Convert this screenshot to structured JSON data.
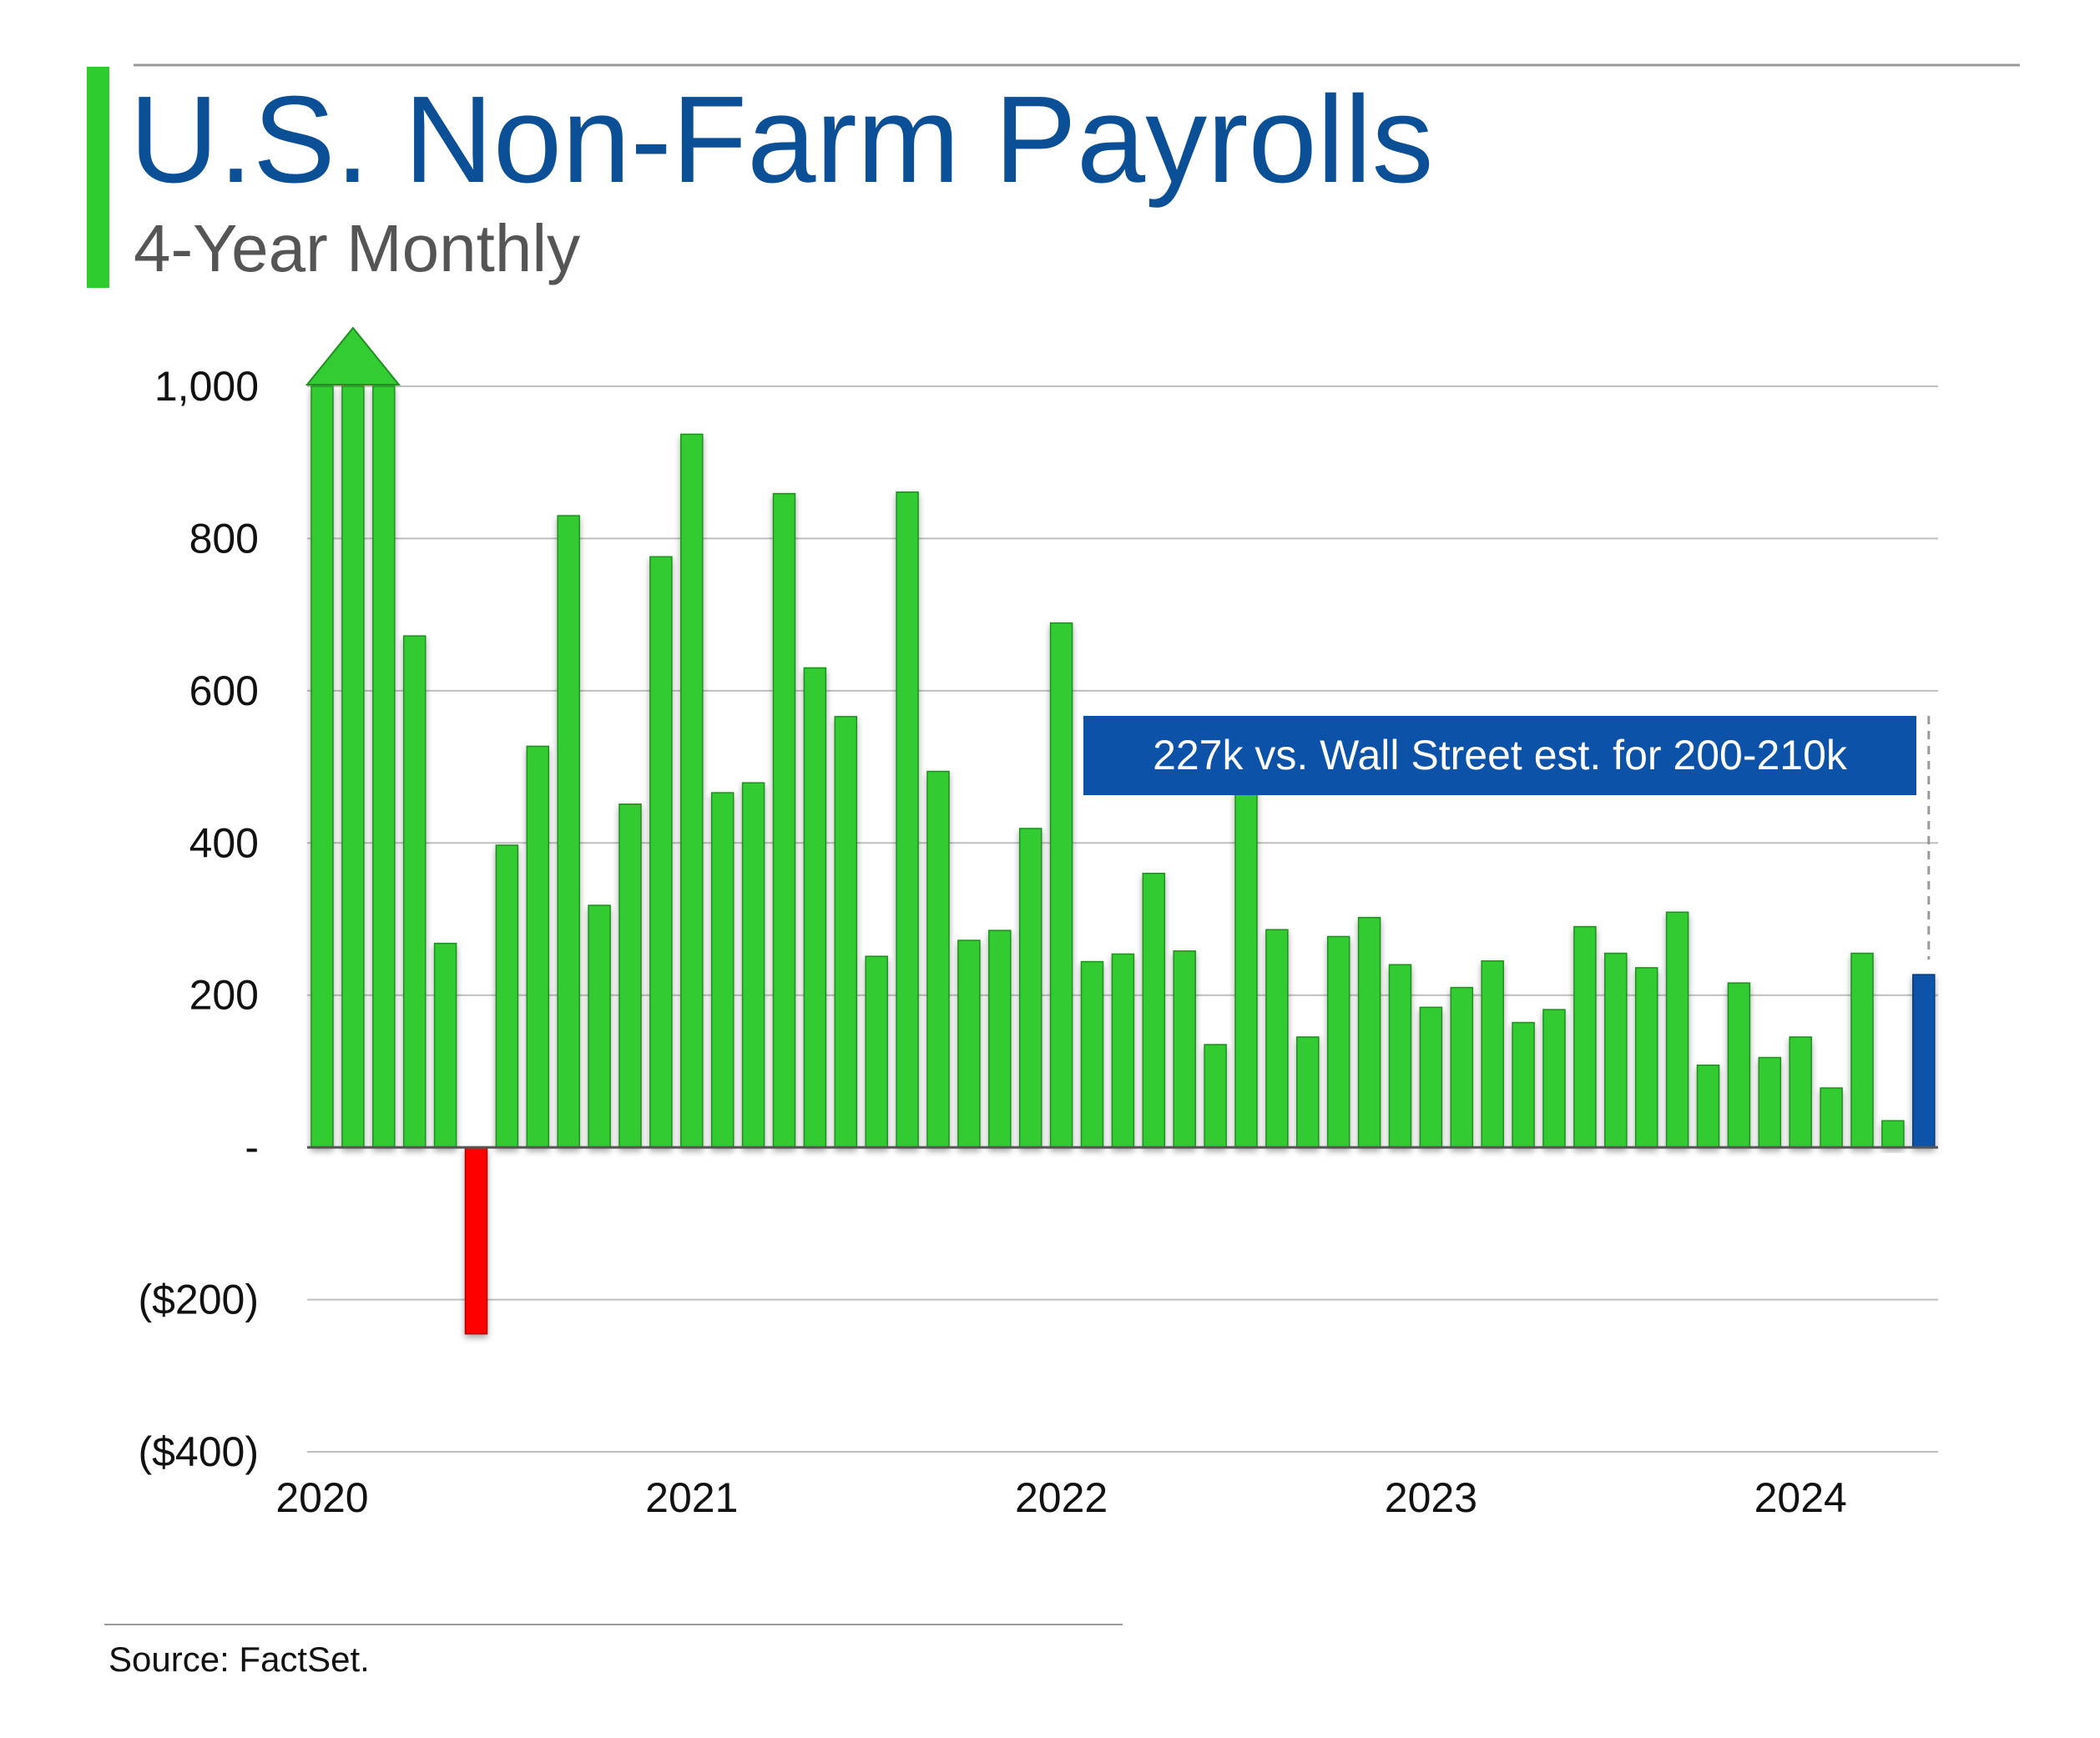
{
  "header": {
    "title": "U.S. Non-Farm Payrolls",
    "subtitle": "4-Year Monthly"
  },
  "footer": {
    "source": "Source: FactSet."
  },
  "colors": {
    "title": "#0b4f96",
    "subtitle": "#555555",
    "accent_bar": "#2ecc2e",
    "positive": "#33cc33",
    "positive_stroke": "#1f8f1f",
    "negative": "#ff0000",
    "highlight": "#0b52a8",
    "callout_bg": "#0b52a8",
    "callout_text": "#ffffff",
    "grid": "#bfbfbf",
    "axis_text": "#111111"
  },
  "chart_data": {
    "type": "bar",
    "title": "U.S. Non-Farm Payrolls",
    "subtitle": "4-Year Monthly",
    "ylim": [
      -400,
      1000
    ],
    "clip_max": 1000,
    "y_ticks": [
      1000,
      800,
      600,
      400,
      200,
      0,
      -200,
      -400
    ],
    "y_tick_labels": [
      "1,000",
      "800",
      "600",
      "400",
      "200",
      "-",
      "($200)",
      "($400)"
    ],
    "x_year_labels": [
      {
        "label": "2020",
        "index": 0
      },
      {
        "label": "2021",
        "index": 12
      },
      {
        "label": "2022",
        "index": 24
      },
      {
        "label": "2023",
        "index": 36
      },
      {
        "label": "2024",
        "index": 48
      }
    ],
    "grid": true,
    "values": [
      1000,
      1000,
      1000,
      672,
      268,
      -245,
      397,
      527,
      830,
      318,
      451,
      776,
      937,
      466,
      479,
      859,
      630,
      566,
      251,
      861,
      494,
      272,
      285,
      419,
      689,
      244,
      254,
      360,
      258,
      135,
      476,
      286,
      145,
      277,
      302,
      240,
      184,
      210,
      245,
      164,
      181,
      290,
      255,
      236,
      309,
      108,
      216,
      118,
      145,
      78,
      255,
      35,
      227
    ],
    "highlight_index": 52,
    "negative_index": 5,
    "clipped_indices": [
      0,
      1,
      2
    ],
    "callout": {
      "text": "227k vs. Wall Street est. for 200-210k",
      "points_to_index": 52
    }
  }
}
